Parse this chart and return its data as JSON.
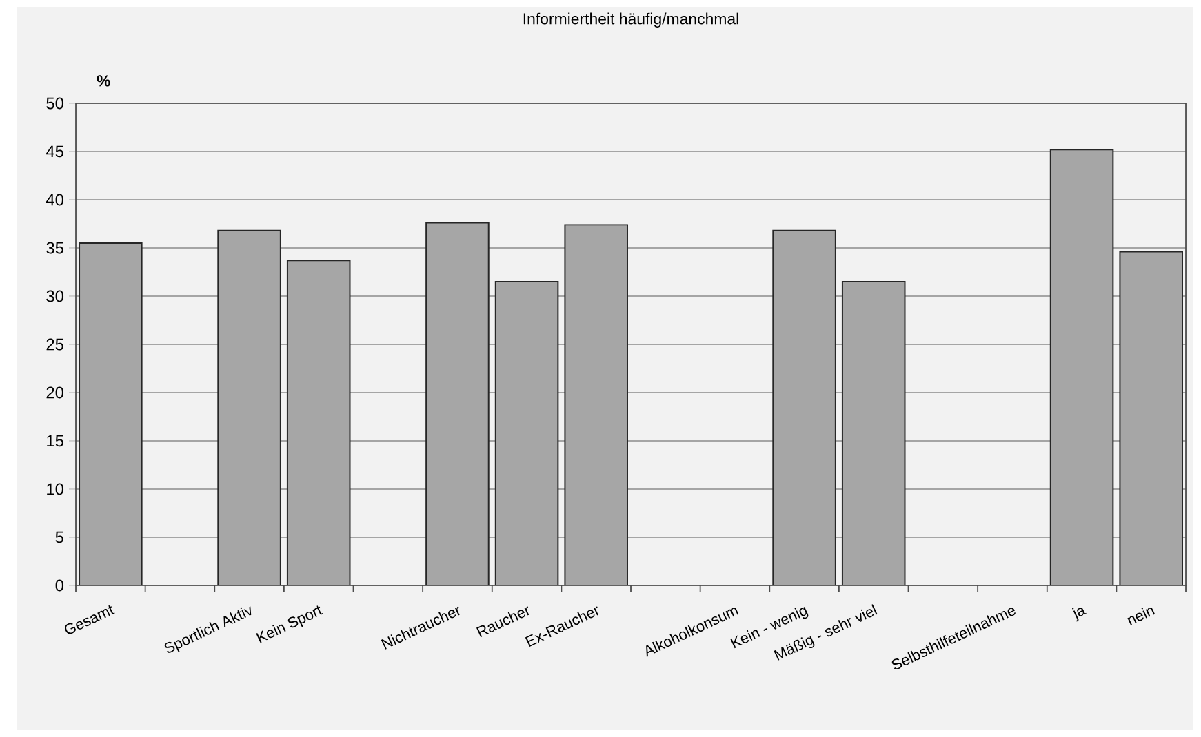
{
  "chart_data": {
    "type": "bar",
    "title": "Informiertheit häufig/manchmal",
    "ylabel": "%",
    "categories": [
      "Gesamt",
      null,
      "Sportlich Aktiv",
      "Kein Sport",
      null,
      "Nichtraucher",
      "Raucher",
      "Ex-Raucher",
      null,
      "Alkoholkonsum",
      "Kein - wenig",
      "Mäßig - sehr viel",
      null,
      "Selbsthilfeteilnahme",
      "ja",
      "nein"
    ],
    "values": [
      35.5,
      null,
      36.8,
      33.7,
      null,
      37.6,
      31.5,
      37.4,
      null,
      null,
      36.8,
      31.5,
      null,
      null,
      45.2,
      34.6
    ],
    "color": "#a6a6a6",
    "ylim": [
      0,
      50
    ],
    "yticks": [
      0,
      5,
      10,
      15,
      20,
      25,
      30,
      35,
      40,
      45,
      50
    ],
    "grid": "y"
  }
}
